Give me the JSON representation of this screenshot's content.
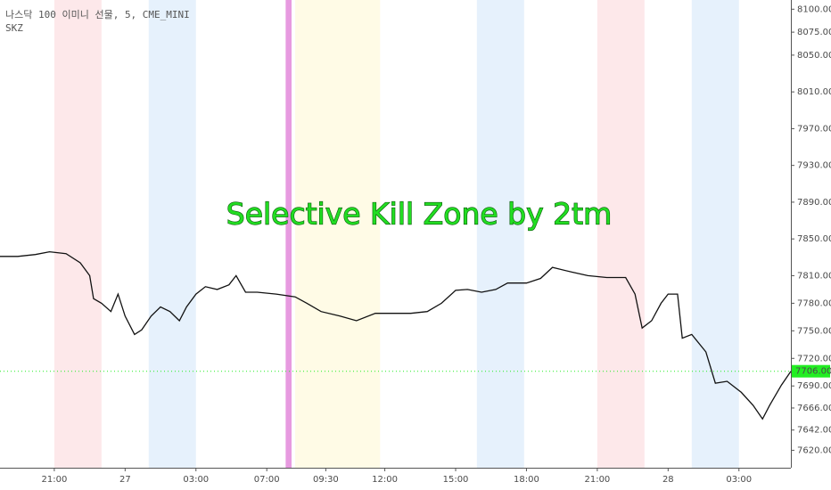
{
  "chart_data": {
    "type": "line",
    "title": "나스닥 100 이미니 선물, 5, CME_MINI",
    "subtitle": "SKZ",
    "annotation": "Selective Kill Zone by 2tm",
    "series": [
      {
        "color": "#111111",
        "x": [
          -2.3,
          -1.55,
          -0.8,
          -0.2,
          0.5,
          1.1,
          1.5,
          1.66,
          2.0,
          2.4,
          2.7,
          3.0,
          3.4,
          3.7,
          4.1,
          4.5,
          4.9,
          5.3,
          5.6,
          6.0,
          6.4,
          6.9,
          7.4,
          7.7,
          8.1,
          8.6,
          9.4,
          10.2,
          10.7,
          11.3,
          12.1,
          12.8,
          13.6,
          14.3,
          15.1,
          15.8,
          16.4,
          17.0,
          17.5,
          18.1,
          18.7,
          19.2,
          20.0,
          20.6,
          21.1,
          21.9,
          22.6,
          23.4,
          24.2,
          24.6,
          24.9,
          25.3,
          25.7,
          26.0,
          26.4,
          26.6,
          27.0,
          27.6,
          28.0,
          28.5,
          29.1,
          29.6,
          30.0,
          30.3,
          30.8,
          31.2
        ],
        "values": [
          7831,
          7831,
          7833,
          7836,
          7834,
          7824,
          7810,
          7785,
          7780,
          7771,
          7790,
          7766,
          7746,
          7751,
          7766,
          7776,
          7771,
          7761,
          7776,
          7790,
          7798,
          7795,
          7800,
          7810,
          7792,
          7792,
          7790,
          7787,
          7780,
          7771,
          7766,
          7761,
          7769,
          7769,
          7769,
          7771,
          7780,
          7794,
          7795,
          7792,
          7795,
          7802,
          7802,
          7807,
          7819,
          7814,
          7810,
          7808,
          7808,
          7790,
          7753,
          7761,
          7780,
          7790,
          7790,
          7742,
          7746,
          7727,
          7693,
          7695,
          7683,
          7669,
          7654,
          7669,
          7691,
          7706
        ]
      }
    ],
    "zones": [
      {
        "start": 0,
        "end": 2,
        "color": "#fde8ea"
      },
      {
        "start": 4,
        "end": 6,
        "color": "#e6f1fc"
      },
      {
        "start": 9.8,
        "end": 10.05,
        "color": "#e79ae0"
      },
      {
        "start": 10.2,
        "end": 13.8,
        "color": "#fffbe6"
      },
      {
        "start": 17.9,
        "end": 19.9,
        "color": "#e6f1fc"
      },
      {
        "start": 23,
        "end": 25,
        "color": "#fde8ea"
      },
      {
        "start": 27,
        "end": 29,
        "color": "#e6f1fc"
      }
    ],
    "last_price": {
      "value": 7706,
      "label": "7706.00",
      "color": "#22ee22"
    },
    "xlim": [
      -2.3,
      31.2
    ],
    "ylim": [
      7601,
      8110
    ],
    "xticks": [
      {
        "value": 0,
        "label": "21:00"
      },
      {
        "value": 3,
        "label": "27"
      },
      {
        "value": 6,
        "label": "03:00"
      },
      {
        "value": 9,
        "label": "07:00"
      },
      {
        "value": 11.5,
        "label": "09:30"
      },
      {
        "value": 14,
        "label": "12:00"
      },
      {
        "value": 17,
        "label": "15:00"
      },
      {
        "value": 20,
        "label": "18:00"
      },
      {
        "value": 23,
        "label": "21:00"
      },
      {
        "value": 26,
        "label": "28"
      },
      {
        "value": 29,
        "label": "03:00"
      }
    ],
    "yticks": [
      {
        "value": 8100,
        "label": "8100.00"
      },
      {
        "value": 8075,
        "label": "8075.00"
      },
      {
        "value": 8050,
        "label": "8050.00"
      },
      {
        "value": 8010,
        "label": "8010.00"
      },
      {
        "value": 7970,
        "label": "7970.00"
      },
      {
        "value": 7930,
        "label": "7930.00"
      },
      {
        "value": 7890,
        "label": "7890.00"
      },
      {
        "value": 7850,
        "label": "7850.00"
      },
      {
        "value": 7810,
        "label": "7810.00"
      },
      {
        "value": 7780,
        "label": "7780.00"
      },
      {
        "value": 7750,
        "label": "7750.00"
      },
      {
        "value": 7720,
        "label": "7720.00"
      },
      {
        "value": 7690,
        "label": "7690.00"
      },
      {
        "value": 7666,
        "label": "7666.00"
      },
      {
        "value": 7642,
        "label": "7642.00"
      },
      {
        "value": 7620,
        "label": "7620.00"
      }
    ]
  }
}
